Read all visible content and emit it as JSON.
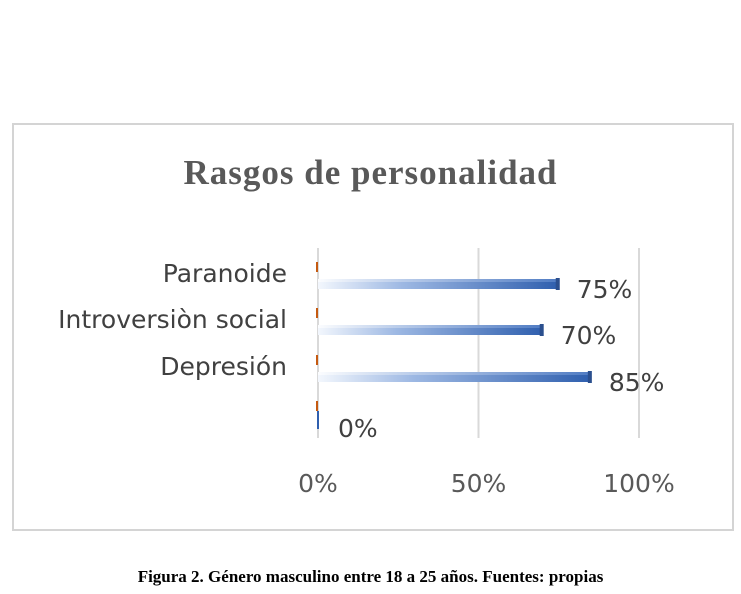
{
  "chart_data": {
    "type": "bar",
    "orientation": "horizontal",
    "title": "Rasgos de personalidad",
    "categories": [
      "Paranoide",
      "Introversiòn social",
      "Depresión",
      ""
    ],
    "series": [
      {
        "values": [
          75,
          70,
          85,
          0
        ]
      }
    ],
    "data_labels": [
      "75%",
      "70%",
      "85%",
      "0%"
    ],
    "x_ticks": [
      "0%",
      "50%",
      "100%"
    ],
    "xlim": [
      0,
      100
    ],
    "grid": true,
    "legend": "none",
    "colors": {
      "bar": "#4472c4",
      "bar_light": "#dbe5f5",
      "grid": "#d9d9d9",
      "side_mark": "#c55a11"
    }
  },
  "caption": "Figura 2. Género masculino entre 18 a 25 años. Fuentes: propias"
}
